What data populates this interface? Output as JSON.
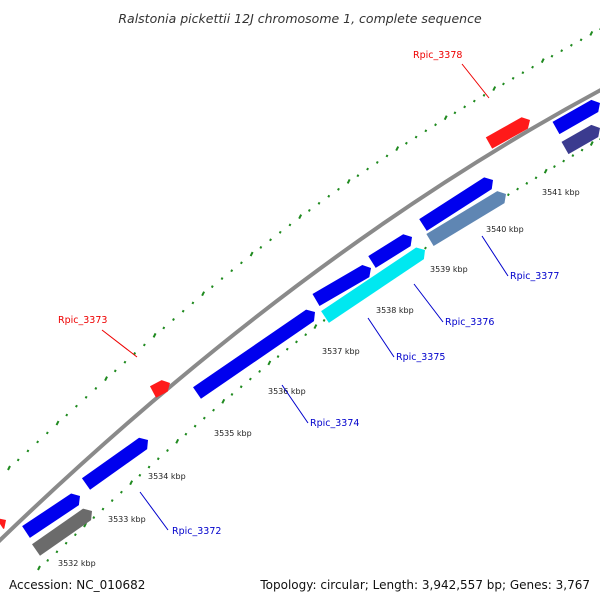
{
  "title": "Ralstonia pickettii 12J chromosome 1, complete sequence",
  "footer": {
    "accession": "Accession: NC_010682",
    "summary": "Topology: circular; Length: 3,942,557 bp; Genes: 3,767"
  },
  "colors": {
    "backbone": "#8a8a8a",
    "cds_forward": "#0000ee",
    "cds_reverse": "#0000ee",
    "highlight": "#ff1a1a",
    "label_blue": "#0000cc",
    "label_red": "#ee0000",
    "tick": "#1f8a1f",
    "cyan": "#00e8f0",
    "steel": "#5f86b3",
    "gray": "#6b6b6b",
    "navy": "#3b3b8f"
  },
  "ticks": [
    "3532 kbp",
    "3533 kbp",
    "3534 kbp",
    "3535 kbp",
    "3536 kbp",
    "3537 kbp",
    "3538 kbp",
    "3539 kbp",
    "3540 kbp",
    "3541 kbp"
  ],
  "gene_labels": [
    {
      "text": "Rpic_3372",
      "color": "label_blue"
    },
    {
      "text": "Rpic_3373",
      "color": "label_red"
    },
    {
      "text": "Rpic_3374",
      "color": "label_blue"
    },
    {
      "text": "Rpic_3375",
      "color": "label_blue"
    },
    {
      "text": "Rpic_3376",
      "color": "label_blue"
    },
    {
      "text": "Rpic_3377",
      "color": "label_blue"
    },
    {
      "text": "Rpic_3378",
      "color": "label_red"
    }
  ]
}
